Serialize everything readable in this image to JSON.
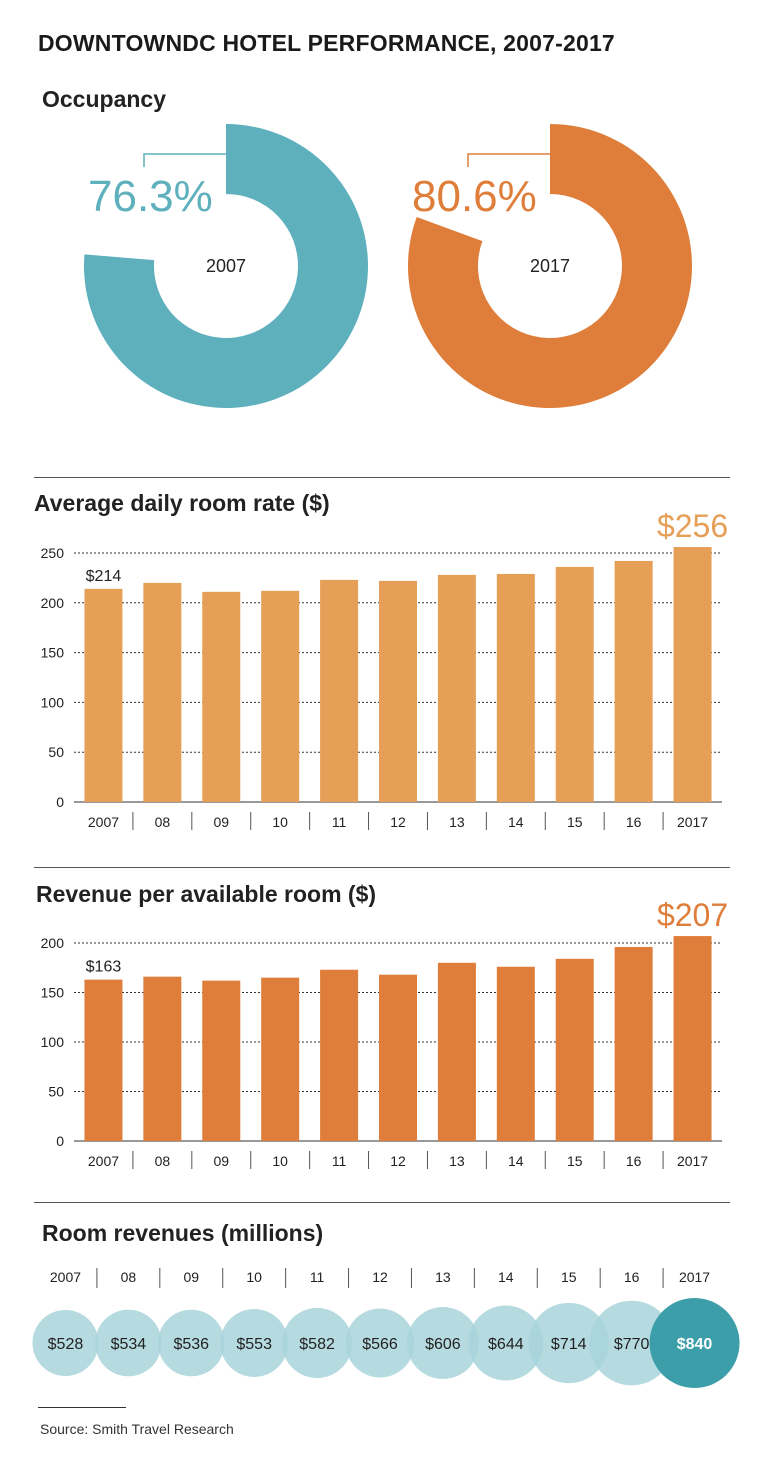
{
  "title": "DOWNTOWNDC HOTEL PERFORMANCE, 2007-2017",
  "colors": {
    "teal": "#5db0bc",
    "orange": "#de7e3a",
    "light_orange": "#e69f57",
    "light_teal": "#a8d4da",
    "dark_teal": "#3c9ea9"
  },
  "occupancy": {
    "title": "Occupancy",
    "donuts": [
      {
        "year": "2007",
        "percent_label": "76.3%",
        "value": 76.3,
        "color": "#5db0bc"
      },
      {
        "year": "2017",
        "percent_label": "80.6%",
        "value": 80.6,
        "color": "#de7e3a"
      }
    ]
  },
  "adr": {
    "title": "Average daily room rate ($)"
  },
  "revpar": {
    "title": "Revenue per available room ($)"
  },
  "room_revenue": {
    "title": "Room revenues (millions)"
  },
  "source": "Source: Smith Travel Research",
  "chart_data": [
    {
      "type": "pie",
      "title": "Occupancy",
      "categories": [
        "2007",
        "2017"
      ],
      "values": [
        76.3,
        80.6
      ],
      "labels": [
        "76.3%",
        "80.6%"
      ]
    },
    {
      "type": "bar",
      "title": "Average daily room rate ($)",
      "categories": [
        "2007",
        "08",
        "09",
        "10",
        "11",
        "12",
        "13",
        "14",
        "15",
        "16",
        "2017"
      ],
      "values": [
        214,
        220,
        211,
        212,
        223,
        222,
        228,
        229,
        236,
        242,
        256
      ],
      "ylim": [
        0,
        250
      ],
      "yticks": [
        "0",
        "50",
        "100",
        "150",
        "200",
        "250"
      ],
      "annotations": [
        {
          "index": 0,
          "text": "$214"
        },
        {
          "index": 10,
          "text": "$256",
          "large": true
        }
      ],
      "color": "#e69f57",
      "grid": true
    },
    {
      "type": "bar",
      "title": "Revenue per available room ($)",
      "categories": [
        "2007",
        "08",
        "09",
        "10",
        "11",
        "12",
        "13",
        "14",
        "15",
        "16",
        "2017"
      ],
      "values": [
        163,
        166,
        162,
        165,
        173,
        168,
        180,
        176,
        184,
        196,
        207
      ],
      "ylim": [
        0,
        200
      ],
      "yticks": [
        "0",
        "50",
        "100",
        "150",
        "200"
      ],
      "annotations": [
        {
          "index": 0,
          "text": "$163"
        },
        {
          "index": 10,
          "text": "$207",
          "large": true
        }
      ],
      "color": "#de7e3a",
      "grid": true
    },
    {
      "type": "scatter",
      "title": "Room revenues (millions)",
      "categories": [
        "2007",
        "08",
        "09",
        "10",
        "11",
        "12",
        "13",
        "14",
        "15",
        "16",
        "2017"
      ],
      "values": [
        528,
        534,
        536,
        553,
        582,
        566,
        606,
        644,
        714,
        770,
        840
      ],
      "labels": [
        "$528",
        "$534",
        "$536",
        "$553",
        "$582",
        "$566",
        "$606",
        "$644",
        "$714",
        "$770",
        "$840"
      ]
    }
  ]
}
